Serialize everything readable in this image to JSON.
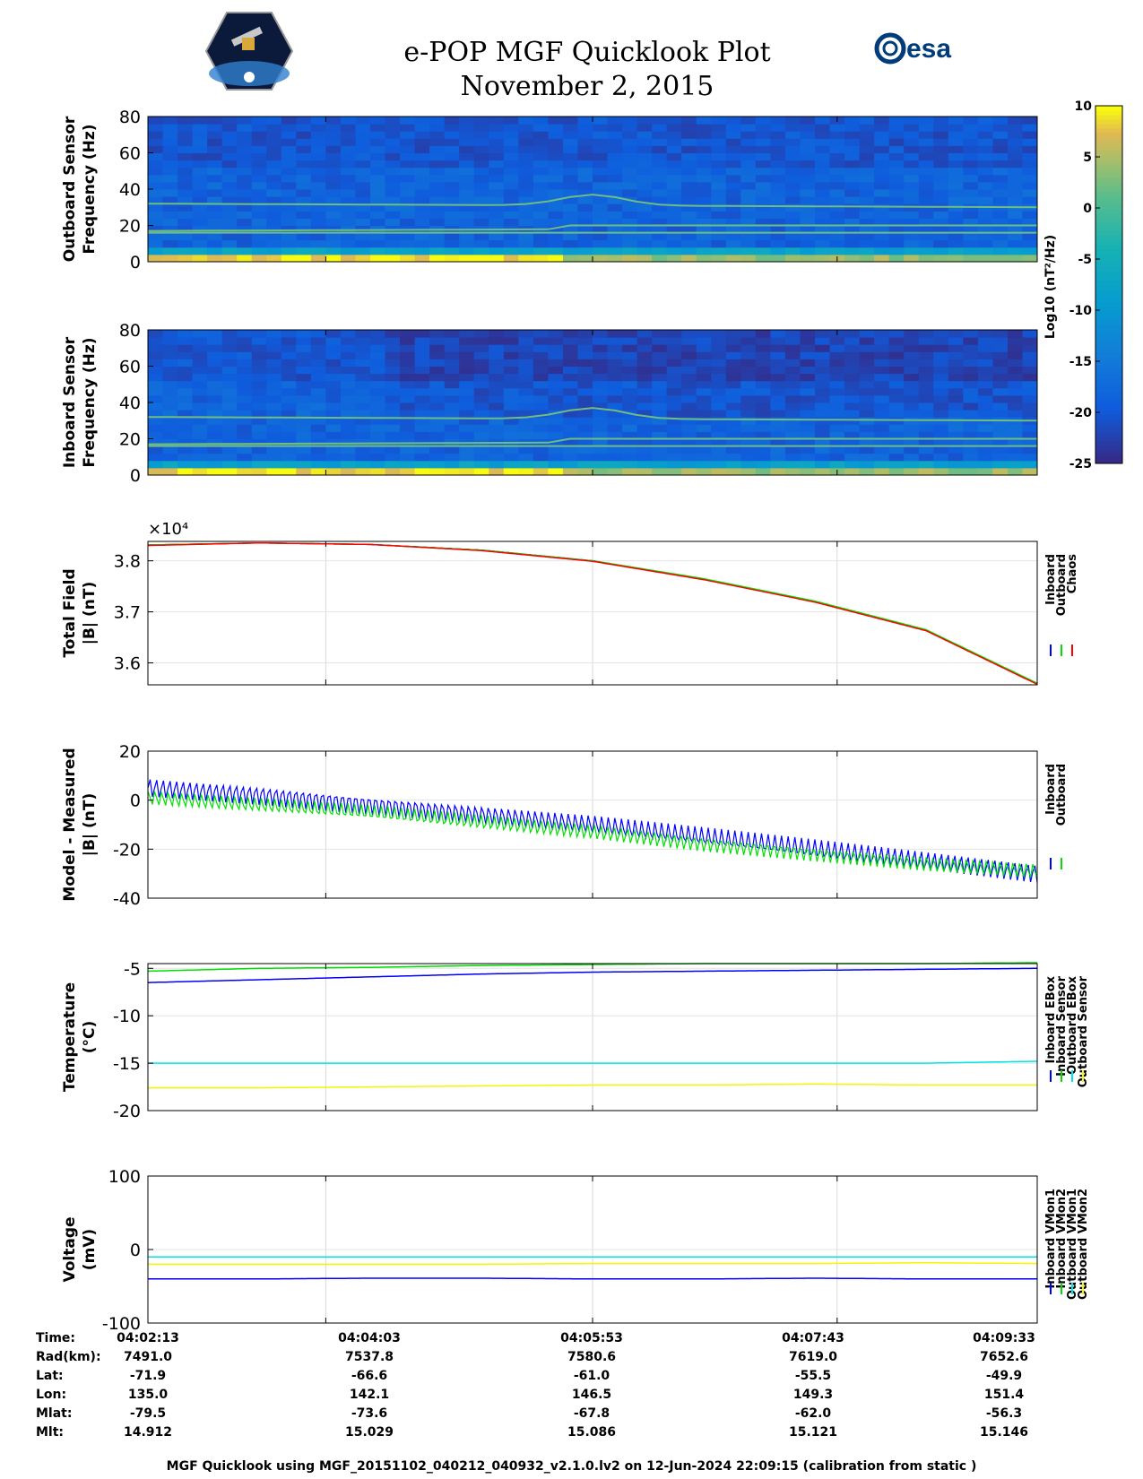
{
  "header": {
    "title": "e-POP MGF Quicklook Plot",
    "date": "November 2, 2015"
  },
  "colors": {
    "inboard": "#0000ff",
    "outboard": "#00e000",
    "chaos": "#ff0000",
    "cyan": "#00e5e5",
    "yellow": "#f5f500",
    "esa": "#003b7a"
  },
  "logos": {
    "esa_text": "esa"
  },
  "colorbar": {
    "label": "Log10 (nT²/Hz)",
    "ticks": [
      "10",
      "5",
      "0",
      "-5",
      "-10",
      "-15",
      "-20",
      "-25"
    ]
  },
  "chart_data": [
    {
      "type": "heatmap",
      "ylabel": "Outboard Sensor Frequency (Hz)",
      "ylabel_lines": [
        "Outboard Sensor",
        "Frequency (Hz)"
      ],
      "ylim": [
        0,
        80
      ],
      "yticks": [
        "80",
        "60",
        "40",
        "20",
        "0"
      ],
      "colormap": "parula",
      "clim": [
        -25,
        10
      ]
    },
    {
      "type": "heatmap",
      "ylabel": "Inboard Sensor Frequency (Hz)",
      "ylabel_lines": [
        "Inboard Sensor",
        "Frequency (Hz)"
      ],
      "ylim": [
        0,
        80
      ],
      "yticks": [
        "80",
        "60",
        "40",
        "20",
        "0"
      ],
      "colormap": "parula",
      "clim": [
        -25,
        10
      ]
    },
    {
      "type": "line",
      "ylabel_lines": [
        "Total Field",
        "|B| (nT)"
      ],
      "exponent": "×10⁴",
      "yticks": [
        "3.8",
        "3.7",
        "3.6"
      ],
      "ylim": [
        3.557,
        3.838
      ],
      "x": [
        0,
        0.125,
        0.25,
        0.375,
        0.5,
        0.625,
        0.75,
        0.875,
        1.0
      ],
      "series": [
        {
          "name": "Inboard",
          "values": [
            3.831,
            3.835,
            3.832,
            3.821,
            3.8,
            3.764,
            3.72,
            3.664,
            3.559
          ]
        },
        {
          "name": "Outboard",
          "values": [
            3.831,
            3.835,
            3.832,
            3.821,
            3.8,
            3.765,
            3.721,
            3.665,
            3.56
          ]
        },
        {
          "name": "Chaos",
          "values": [
            3.83,
            3.835,
            3.832,
            3.82,
            3.799,
            3.763,
            3.719,
            3.663,
            3.558
          ]
        }
      ],
      "legend": [
        "Inboard",
        "Outboard",
        "Chaos"
      ],
      "grid": true
    },
    {
      "type": "line",
      "ylabel_lines": [
        "Model - Measured",
        "|B| (nT)"
      ],
      "yticks": [
        "20",
        "0",
        "-20",
        "-40"
      ],
      "ylim": [
        -40,
        20
      ],
      "x": [
        0,
        0.125,
        0.25,
        0.375,
        0.5,
        0.625,
        0.75,
        0.875,
        1.0
      ],
      "series": [
        {
          "name": "Inboard",
          "values": [
            5,
            2,
            -2,
            -6,
            -10,
            -15,
            -20,
            -25,
            -30
          ],
          "amplitude": 4
        },
        {
          "name": "Outboard",
          "values": [
            1,
            -2,
            -5,
            -9,
            -13,
            -18,
            -22,
            -26,
            -29
          ],
          "amplitude": 3
        }
      ],
      "legend": [
        "Inboard",
        "Outboard"
      ],
      "grid": true
    },
    {
      "type": "line",
      "ylabel_lines": [
        "Temperature",
        "(°C)"
      ],
      "yticks": [
        "-5",
        "-10",
        "-15",
        "-20"
      ],
      "ylim": [
        -20,
        -4.5
      ],
      "x": [
        0,
        0.125,
        0.25,
        0.375,
        0.5,
        0.625,
        0.75,
        0.875,
        1.0
      ],
      "series": [
        {
          "name": "Inboard EBox",
          "values": [
            -6.5,
            -6.2,
            -5.9,
            -5.6,
            -5.4,
            -5.3,
            -5.2,
            -5.1,
            -5.0
          ]
        },
        {
          "name": "Inboard Sensor",
          "values": [
            -5.3,
            -5.0,
            -4.9,
            -4.7,
            -4.6,
            -4.5,
            -4.5,
            -4.5,
            -4.4
          ]
        },
        {
          "name": "Outboard EBox",
          "values": [
            -15.0,
            -15.0,
            -15.0,
            -15.0,
            -15.0,
            -15.0,
            -15.0,
            -15.0,
            -14.8
          ]
        },
        {
          "name": "Outboard Sensor",
          "values": [
            -17.6,
            -17.6,
            -17.5,
            -17.4,
            -17.3,
            -17.3,
            -17.2,
            -17.3,
            -17.3
          ]
        }
      ],
      "legend": [
        "Inboard EBox",
        "Inboard Sensor",
        "Outboard EBox",
        "Outboard Sensor"
      ],
      "grid": true
    },
    {
      "type": "line",
      "ylabel_lines": [
        "Voltage",
        "(mV)"
      ],
      "yticks": [
        "100",
        "0",
        "-100"
      ],
      "ylim": [
        -100,
        100
      ],
      "x": [
        0,
        0.125,
        0.25,
        0.375,
        0.5,
        0.625,
        0.75,
        0.875,
        1.0
      ],
      "series": [
        {
          "name": "Inboard VMon1",
          "values": [
            -40,
            -40,
            -39,
            -39,
            -40,
            -40,
            -39,
            -40,
            -40
          ]
        },
        {
          "name": "Inboard VMon2",
          "values": [
            -10,
            -10,
            -10,
            -10,
            -10,
            -10,
            -10,
            -10,
            -10
          ]
        },
        {
          "name": "Outboard VMon1",
          "values": [
            -10,
            -10,
            -10,
            -10,
            -10,
            -10,
            -10,
            -10,
            -10
          ]
        },
        {
          "name": "Outboard VMon2",
          "values": [
            -20,
            -20,
            -20,
            -20,
            -19,
            -19,
            -19,
            -18,
            -19
          ]
        }
      ],
      "legend": [
        "Inboard VMon1",
        "Inboard VMon2",
        "Outboard VMon1",
        "Outboard VMon2"
      ],
      "grid": true
    }
  ],
  "time_table": {
    "labels": [
      "Time:",
      "Rad(km):",
      "Lat:",
      "Lon:",
      "Mlat:",
      "Mlt:"
    ],
    "columns": [
      [
        "04:02:13",
        "7491.0",
        "-71.9",
        "135.0",
        "-79.5",
        "14.912"
      ],
      [
        "04:04:03",
        "7537.8",
        "-66.6",
        "142.1",
        "-73.6",
        "15.029"
      ],
      [
        "04:05:53",
        "7580.6",
        "-61.0",
        "146.5",
        "-67.8",
        "15.086"
      ],
      [
        "04:07:43",
        "7619.0",
        "-55.5",
        "149.3",
        "-62.0",
        "15.121"
      ],
      [
        "04:09:33",
        "7652.6",
        "-49.9",
        "151.4",
        "-56.3",
        "15.146"
      ]
    ]
  },
  "footer": "MGF Quicklook using MGF_20151102_040212_040932_v2.1.0.lv2 on 12-Jun-2024 22:09:15 (calibration from static )"
}
